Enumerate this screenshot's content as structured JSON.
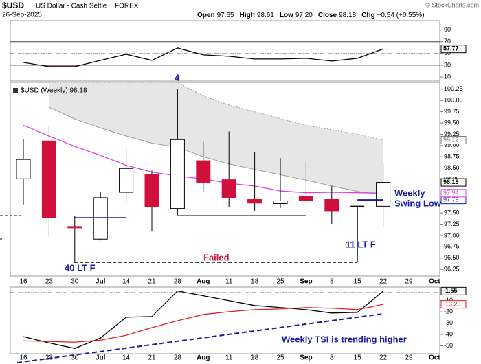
{
  "header": {
    "symbol": "$USD",
    "description": "US Dollar - Cash Settle",
    "exchange": "FOREX",
    "date": "26-Sep-2025",
    "copyright": "© StockCharts.com",
    "quote": [
      {
        "label": "Open",
        "value": "97.65"
      },
      {
        "label": "High",
        "value": "98.61"
      },
      {
        "label": "Low",
        "value": "97.20"
      },
      {
        "label": "Close",
        "value": "98.18"
      },
      {
        "label": "Chg",
        "value": "+0.54 (+0.55%)"
      }
    ]
  },
  "chart_data": [
    {
      "type": "line",
      "ylim": [
        3,
        106
      ],
      "yticks": [
        90,
        70,
        50,
        30,
        10
      ],
      "reference_lines": [
        {
          "value": 70,
          "style": "solid"
        },
        {
          "value": 50,
          "style": "dashdot"
        },
        {
          "value": 30,
          "style": "solid"
        }
      ],
      "oversold_fill": "#9b7470",
      "series": [
        {
          "color": "#000000",
          "values": [
            34.7,
            27.6,
            27.6,
            38.2,
            48.8,
            38.2,
            59.4,
            47.6,
            45.3,
            40.6,
            40.6,
            41.8,
            37.1,
            41.8,
            57.77,
            null,
            null
          ]
        }
      ]
    },
    {
      "type": "candlestick",
      "label": "$USD (Weekly) 98.18",
      "categories": [
        "16",
        "23",
        "30",
        "Jul",
        "14",
        "21",
        "28",
        "Aug",
        "11",
        "18",
        "25",
        "Sep",
        "8",
        "15",
        "22",
        "29",
        "Oct"
      ],
      "open": [
        98.26,
        99.1,
        97.2,
        96.92,
        97.96,
        98.36,
        97.6,
        98.66,
        98.24,
        97.8,
        97.71,
        97.87,
        97.8,
        97.65,
        97.65,
        null,
        null
      ],
      "high": [
        99.15,
        99.42,
        97.43,
        97.96,
        98.95,
        98.44,
        100.25,
        99.08,
        99.31,
        98.85,
        98.72,
        98.64,
        98.1,
        97.66,
        98.61,
        null,
        null
      ],
      "low": [
        97.69,
        96.97,
        96.42,
        96.89,
        97.72,
        97.09,
        97.46,
        97.96,
        97.63,
        97.55,
        97.61,
        97.69,
        97.26,
        96.42,
        97.2,
        null,
        null
      ],
      "close": [
        98.69,
        97.4,
        97.17,
        97.84,
        98.49,
        97.64,
        99.13,
        98.18,
        97.84,
        97.72,
        97.77,
        97.77,
        97.55,
        97.65,
        98.18,
        null,
        null
      ],
      "up_color": "#ffffff",
      "down_color": "#d0103a",
      "ylim": [
        96.1,
        100.4
      ],
      "yticks": [
        100.25,
        {
          "value": 100,
          "label": "100.00"
        },
        99.75,
        {
          "value": 99.5,
          "label": "99.50"
        },
        99.25,
        {
          "value": 99,
          "label": "99.00"
        },
        98.75,
        {
          "value": 98.5,
          "label": "98.50"
        },
        98.25,
        {
          "value": 97.5,
          "label": "97.50"
        },
        97.25,
        {
          "value": 97,
          "label": "97.00"
        },
        96.75,
        {
          "value": 96.5,
          "label": "96.50"
        },
        96.25
      ],
      "moving_average": {
        "color": "#e040e0",
        "values": [
          99.45,
          99.21,
          98.98,
          98.78,
          98.56,
          98.41,
          98.32,
          98.26,
          98.16,
          98.1,
          97.99,
          97.95,
          97.96,
          97.95,
          97.94,
          null,
          null
        ]
      },
      "band_upper": {
        "color": "#999999",
        "values": [
          null,
          100.4,
          100.4,
          100.4,
          100.4,
          100.4,
          100.4,
          100.1,
          99.9,
          99.75,
          99.6,
          99.45,
          99.35,
          99.25,
          99.12,
          null,
          null
        ]
      },
      "band_lower": {
        "color": "#999999",
        "values": [
          null,
          99.85,
          99.59,
          99.39,
          99.21,
          99.05,
          98.96,
          98.75,
          98.59,
          98.47,
          98.35,
          98.23,
          98.1,
          97.98,
          97.9,
          null,
          null
        ]
      },
      "band_fill": "#e6e6e6",
      "swing_low": {
        "color": "#1a1aa0",
        "value": 97.79
      },
      "annotations": [
        "4",
        "Weekly",
        "Swing Low",
        "Failed",
        "40 LT F",
        "11 LT F"
      ]
    },
    {
      "type": "line",
      "categories": [
        "16",
        "23",
        "30",
        "Jul",
        "14",
        "21",
        "28",
        "Aug",
        "11",
        "18",
        "25",
        "Sep",
        "8",
        "15",
        "22",
        "29",
        "Oct"
      ],
      "ylim": [
        -57,
        2
      ],
      "yticks": [
        -10,
        -20,
        -30,
        -40,
        -50
      ],
      "series": [
        {
          "color": "#000000",
          "values": [
            -41.9,
            -47.4,
            -52.3,
            -43.1,
            -24.7,
            -24.1,
            -1.4,
            -5.7,
            -10,
            -14.3,
            -16.1,
            -18,
            -21,
            -20.4,
            -1.55,
            null,
            null
          ]
        },
        {
          "color": "#e02020",
          "values": [
            -45.6,
            -46.2,
            -46.8,
            -45,
            -40.7,
            -33.9,
            -27.8,
            -22.3,
            -19.8,
            -18,
            -17.4,
            -16.1,
            -16.7,
            -18,
            -13.29,
            null,
            null
          ]
        }
      ],
      "annotation": "Weekly TSI is trending higher"
    }
  ]
}
